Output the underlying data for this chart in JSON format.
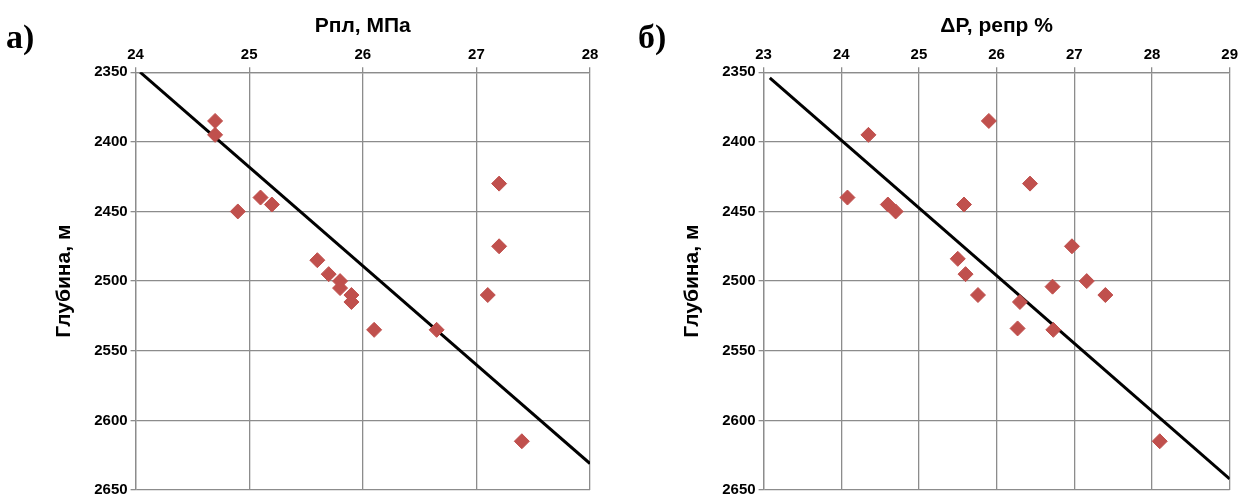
{
  "chart_data": [
    {
      "type": "scatter",
      "xlabel": "Рпл, МПа",
      "ylabel": "Глубина, м",
      "annotations": [
        "а)"
      ],
      "xlim": [
        24,
        28
      ],
      "xticks": [
        24,
        25,
        26,
        27,
        28
      ],
      "ylim": [
        2650,
        2350
      ],
      "yticks": [
        2350,
        2400,
        2450,
        2500,
        2550,
        2600,
        2650
      ],
      "grid": true,
      "legend": false,
      "marker": "diamond",
      "series": [
        {
          "color": "#c0504d",
          "x": [
            24.7,
            24.7,
            24.9,
            25.1,
            25.2,
            25.6,
            25.7,
            25.8,
            25.8,
            25.9,
            25.9,
            26.1,
            26.65,
            27.2,
            27.2,
            27.1,
            27.4
          ],
          "values": [
            2385,
            2395,
            2450,
            2440,
            2445,
            2485,
            2495,
            2500,
            2505,
            2510,
            2515,
            2535,
            2535,
            2430,
            2475,
            2510,
            2615
          ]
        },
        {
          "type": "line",
          "color": "#000000",
          "marker": "none",
          "line_style": "solid",
          "x": [
            24.04,
            28
          ],
          "values": [
            2350,
            2631
          ]
        }
      ]
    },
    {
      "type": "scatter",
      "xlabel": "ΔP, репр %",
      "ylabel": "Глубина, м",
      "annotations": [
        "б)"
      ],
      "xlim": [
        23,
        29
      ],
      "xticks": [
        23,
        24,
        25,
        26,
        27,
        28,
        29
      ],
      "ylim": [
        2650,
        2350
      ],
      "yticks": [
        2350,
        2400,
        2450,
        2500,
        2550,
        2600,
        2650
      ],
      "grid": true,
      "legend": false,
      "marker": "diamond",
      "series": [
        {
          "color": "#c0504d",
          "x": [
            24.35,
            25.9,
            24.08,
            24.6,
            24.7,
            25.58,
            26.43,
            25.5,
            25.6,
            25.76,
            26.97,
            27.16,
            27.4,
            26.72,
            26.3,
            26.27,
            26.73,
            28.1
          ],
          "values": [
            2395,
            2385,
            2440,
            2445,
            2450,
            2445,
            2430,
            2484,
            2495,
            2510,
            2475,
            2500,
            2510,
            2504,
            2515,
            2534,
            2535,
            2615
          ]
        },
        {
          "type": "line",
          "color": "#000000",
          "marker": "none",
          "line_style": "solid",
          "x": [
            23.08,
            29
          ],
          "values": [
            2354,
            2642
          ]
        }
      ]
    }
  ]
}
